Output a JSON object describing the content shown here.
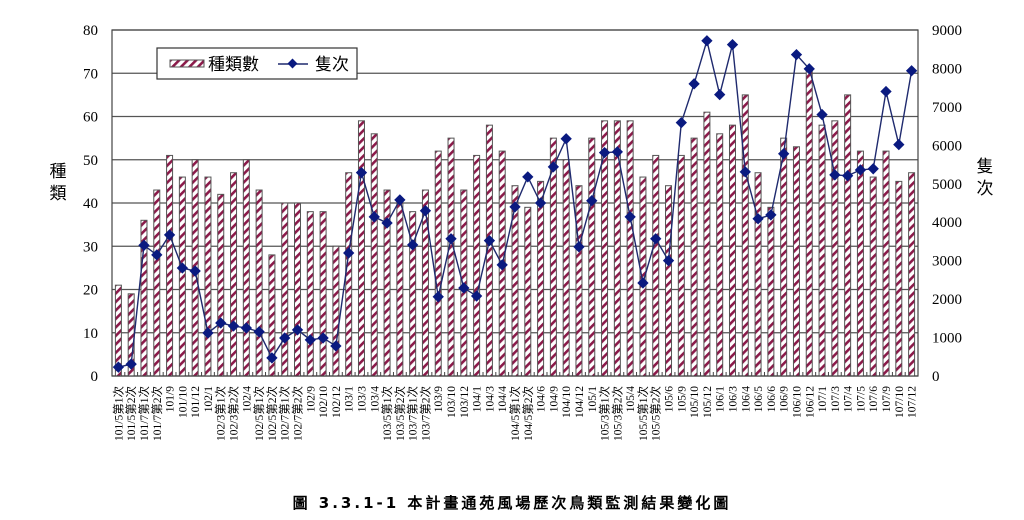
{
  "caption": "圖 3.3.1-1  本計畫通苑風場歷次鳥類監測結果變化圖",
  "colors": {
    "bar_stripe": "#8B1A4A",
    "bar_border": "#555555",
    "line": "#1F2A6E",
    "marker": "#0A1A80",
    "grid": "#555555"
  },
  "chart_data": {
    "type": "bar+line",
    "title": "本計畫通苑風場歷次鳥類監測結果變化圖",
    "ylabel": "種類",
    "y2label": "隻次",
    "ylim": [
      0,
      80
    ],
    "y2lim": [
      0,
      9000
    ],
    "yticks": [
      0,
      10,
      20,
      30,
      40,
      50,
      60,
      70,
      80
    ],
    "y2ticks": [
      0,
      1000,
      2000,
      3000,
      4000,
      5000,
      6000,
      7000,
      8000,
      9000
    ],
    "grid": true,
    "legend_position": "top-left inside",
    "legend": [
      "種類數",
      "隻次"
    ],
    "categories": [
      "101/5第1次",
      "101/5第2次",
      "101/7第1次",
      "101/7第2次",
      "101/9",
      "101/10",
      "101/12",
      "102/1",
      "102/3第1次",
      "102/3第2次",
      "102/4",
      "102/5第1次",
      "102/5第2次",
      "102/7第1次",
      "102/7第2次",
      "102/9",
      "102/10",
      "102/12",
      "103/1",
      "103/3",
      "103/4",
      "103/5第1次",
      "103/5第2次",
      "103/7第1次",
      "103/7第2次",
      "103/9",
      "103/10",
      "103/12",
      "104/1",
      "104/3",
      "104/4",
      "104/5第1次",
      "104/5第2次",
      "104/6",
      "104/9",
      "104/10",
      "104/12",
      "105/1",
      "105/3第1次",
      "105/3第2次",
      "105/4",
      "105/5第1次",
      "105/5第2次",
      "105/6",
      "105/9",
      "105/10",
      "105/12",
      "106/1",
      "106/3",
      "106/4",
      "106/5",
      "106/6",
      "106/9",
      "106/10",
      "106/12",
      "107/1",
      "107/3",
      "107/4",
      "107/5",
      "107/6",
      "107/9",
      "107/10",
      "107/12"
    ],
    "series": [
      {
        "name": "種類數",
        "type": "bar",
        "axis": "left",
        "values": [
          21,
          19,
          36,
          43,
          51,
          46,
          50,
          46,
          42,
          47,
          50,
          43,
          28,
          40,
          40,
          38,
          38,
          30,
          47,
          59,
          56,
          43,
          41,
          38,
          43,
          52,
          55,
          43,
          51,
          58,
          52,
          44,
          39,
          45,
          55,
          50,
          44,
          55,
          59,
          59,
          59,
          46,
          51,
          44,
          51,
          55,
          61,
          56,
          58,
          65,
          47,
          39,
          55,
          53,
          71,
          58,
          59,
          65,
          52,
          46,
          52,
          45,
          47
        ]
      },
      {
        "name": "隻次",
        "type": "line",
        "axis": "right",
        "values": [
          230,
          310,
          3400,
          3150,
          3670,
          2810,
          2730,
          1120,
          1380,
          1300,
          1250,
          1150,
          470,
          990,
          1200,
          940,
          990,
          780,
          3200,
          5290,
          4140,
          3980,
          4580,
          3410,
          4300,
          2060,
          3570,
          2290,
          2080,
          3520,
          2890,
          4400,
          5180,
          4500,
          5440,
          6170,
          3360,
          4560,
          5810,
          5830,
          4140,
          2420,
          3570,
          3000,
          6590,
          7600,
          8720,
          7320,
          8620,
          5310,
          4090,
          4190,
          5780,
          8360,
          7990,
          6800,
          5230,
          5210,
          5360,
          5390,
          7400,
          6020,
          7940
        ]
      }
    ]
  }
}
